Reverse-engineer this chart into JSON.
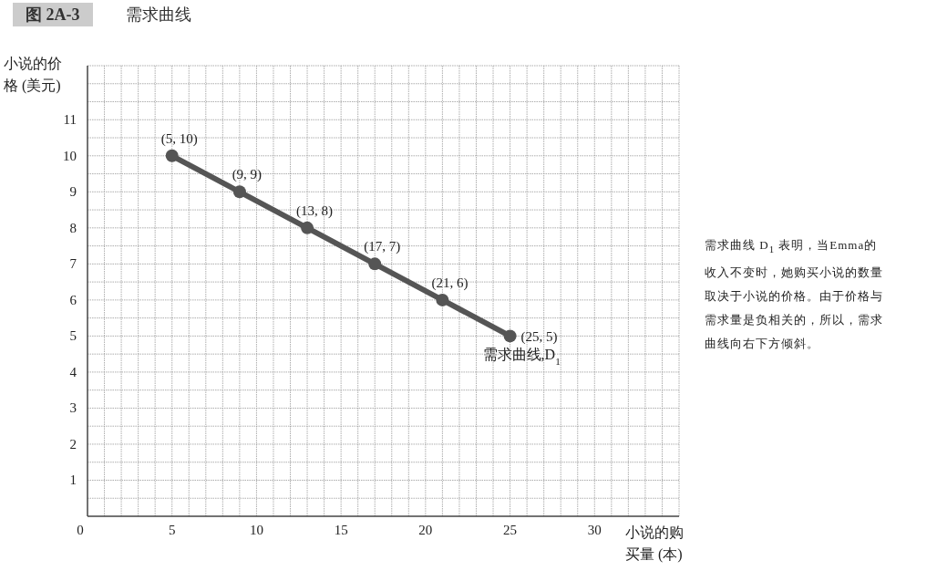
{
  "chart_data": {
    "type": "line",
    "title": "图 2A-3　需求曲线",
    "xlabel": "小说的购买量 (本)",
    "ylabel": "小说的价格 (美元)",
    "x": [
      5,
      9,
      13,
      17,
      21,
      25
    ],
    "series": [
      {
        "name": "需求曲线,D$_{1}$",
        "color": "#555555",
        "values": [
          10,
          9,
          8,
          7,
          6,
          5
        ],
        "value_labels": [
          "(5, 10)",
          "(9, 9)",
          "(13, 8)",
          "(17, 7)",
          "(21, 6)",
          "(25, 5)"
        ]
      }
    ],
    "xlim": [
      0,
      35
    ],
    "ylim": [
      0,
      12.5
    ],
    "xticks": [
      0,
      5,
      10,
      15,
      20,
      25,
      30
    ],
    "yticks": [
      1,
      2,
      3,
      4,
      5,
      6,
      7,
      8,
      9,
      10,
      11
    ],
    "grid": true,
    "marker": "circle",
    "line_style": "solid",
    "annotations": [
      "需求曲线 D$_{1}$ 表明，当Emma的收入不变时，她购买小说的数量取决于小说的价格。由于价格与需求量是负相关的，所以，需求曲线向右下方倾斜。"
    ]
  }
}
